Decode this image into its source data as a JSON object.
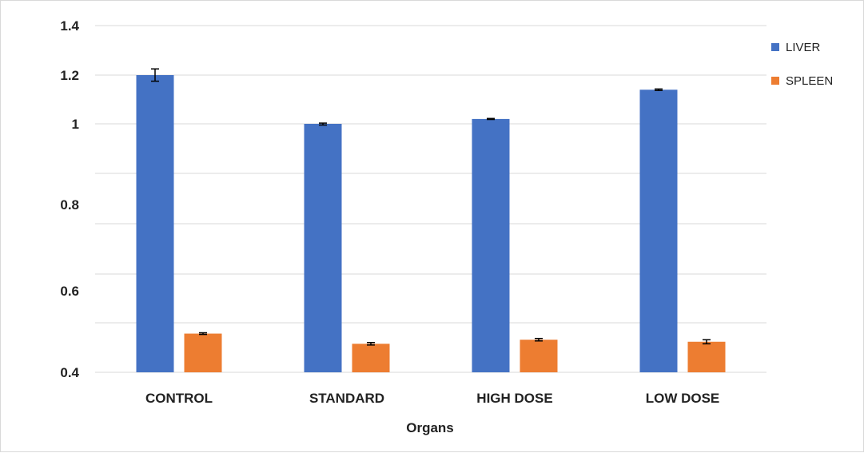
{
  "chart_data": {
    "type": "bar",
    "title": "",
    "xlabel": "Organs",
    "ylabel": "",
    "categories": [
      "CONTROL",
      "STANDARD",
      "HIGH DOSE",
      "LOW DOSE"
    ],
    "series": [
      {
        "name": "LIVER",
        "color": "#4472c4",
        "values": [
          1.2,
          1.0,
          1.02,
          1.14
        ],
        "errors": [
          0.025,
          0.003,
          0.002,
          0.003
        ]
      },
      {
        "name": "SPLEEN",
        "color": "#ed7d31",
        "values": [
          0.495,
          0.47,
          0.48,
          0.475
        ],
        "errors": [
          0.002,
          0.003,
          0.003,
          0.005
        ]
      }
    ],
    "yticks": [
      "0.4",
      "0.6",
      "0.8",
      "1",
      "1.2",
      "1.4"
    ],
    "ylim": [
      0.4,
      1.4
    ],
    "grid": true,
    "legend_position": "right"
  }
}
